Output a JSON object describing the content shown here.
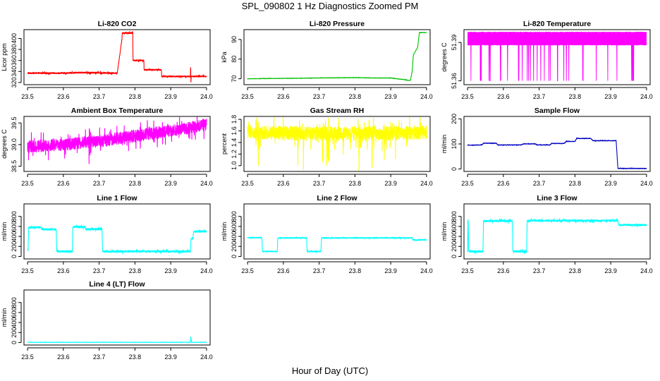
{
  "figure": {
    "title": "SPL_090802  1 Hz Diagnostics Zoomed PM",
    "xlabel": "Hour of Day (UTC)"
  },
  "chart_data": [
    {
      "type": "line",
      "title": "Li-820 CO2",
      "ylabel": "Licor ppm",
      "color": "#ff0000",
      "xlim": [
        23.49,
        24.01
      ],
      "ylim": [
        316,
        416
      ],
      "xticks": [
        23.5,
        23.6,
        23.7,
        23.8,
        23.9,
        24.0
      ],
      "yticks": [
        320,
        340,
        360,
        380,
        400
      ],
      "noise": 1.2,
      "x": [
        23.5,
        23.6,
        23.649,
        23.65,
        23.75,
        23.7505,
        23.764,
        23.7645,
        23.794,
        23.7945,
        23.825,
        23.8255,
        23.874,
        23.8745,
        23.955,
        23.9555,
        23.9565,
        23.957,
        24.0
      ],
      "y": [
        337,
        337,
        338,
        338,
        337,
        337,
        400,
        410,
        410,
        360,
        360,
        343,
        343,
        331,
        331,
        351,
        319,
        331,
        331
      ]
    },
    {
      "type": "line",
      "title": "Li-820 Pressure",
      "ylabel": "kPa",
      "color": "#00c000",
      "xlim": [
        23.49,
        24.01
      ],
      "ylim": [
        67,
        95
      ],
      "xticks": [
        23.5,
        23.6,
        23.7,
        23.8,
        23.9,
        24.0
      ],
      "yticks": [
        70,
        80,
        90
      ],
      "noise": 0.1,
      "x": [
        23.5,
        23.6,
        23.799,
        23.8,
        23.85,
        23.85,
        23.9,
        23.945,
        23.946,
        23.95,
        23.955,
        23.96,
        23.963,
        23.975,
        23.98,
        24.0
      ],
      "y": [
        70,
        70.2,
        70.6,
        70.6,
        70.4,
        70.4,
        70.4,
        69.4,
        69.2,
        69.2,
        69.2,
        74,
        82,
        86,
        93.5,
        93.5
      ]
    },
    {
      "type": "line",
      "title": "Li-820 Temperature",
      "ylabel": "degrees C",
      "color": "#ff00ff",
      "xlim": [
        23.49,
        24.01
      ],
      "ylim": [
        51.357,
        51.4
      ],
      "xticks": [
        23.5,
        23.6,
        23.7,
        23.8,
        23.9,
        24.0
      ],
      "yticks": [
        51.36,
        51.39
      ],
      "render": "digital",
      "levels": [
        51.36,
        51.398
      ],
      "baseline": 51.388
    },
    {
      "type": "line",
      "title": "Ambient Box Temperature",
      "ylabel": "degrees C",
      "color": "#ff00ff",
      "xlim": [
        23.49,
        24.01
      ],
      "ylim": [
        38.38,
        39.65
      ],
      "xticks": [
        23.5,
        23.6,
        23.7,
        23.8,
        23.9,
        24.0
      ],
      "yticks": [
        38.5,
        39.0,
        39.5
      ],
      "noise": 0.14,
      "x": [
        23.5,
        23.6,
        23.7,
        23.8,
        23.9,
        24.0
      ],
      "y": [
        38.95,
        39.0,
        39.08,
        39.2,
        39.32,
        39.45
      ]
    },
    {
      "type": "line",
      "title": "Gas Stream RH",
      "ylabel": "percent",
      "color": "#ffff00",
      "xlim": [
        23.49,
        24.01
      ],
      "ylim": [
        0.9,
        1.85
      ],
      "xticks": [
        23.5,
        23.6,
        23.7,
        23.8,
        23.9,
        24.0
      ],
      "yticks": [
        1.0,
        1.2,
        1.4,
        1.6,
        1.8
      ],
      "noise": 0.12,
      "x": [
        23.5,
        23.7,
        23.9,
        24.0
      ],
      "y": [
        1.58,
        1.55,
        1.56,
        1.58
      ]
    },
    {
      "type": "line",
      "title": "Sample Flow",
      "ylabel": "ml/min",
      "color": "#0000c0",
      "xlim": [
        23.49,
        24.01
      ],
      "ylim": [
        -10,
        210
      ],
      "xticks": [
        23.5,
        23.6,
        23.7,
        23.8,
        23.9,
        24.0
      ],
      "yticks": [
        0,
        100,
        200
      ],
      "noise": 1.2,
      "x": [
        23.5,
        23.54,
        23.545,
        23.58,
        23.585,
        23.65,
        23.655,
        23.69,
        23.695,
        23.73,
        23.735,
        23.77,
        23.775,
        23.8,
        23.805,
        23.845,
        23.85,
        23.915,
        23.92,
        24.0
      ],
      "y": [
        95,
        96,
        103,
        103,
        96,
        96,
        100,
        100,
        96,
        96,
        102,
        102,
        110,
        110,
        122,
        122,
        113,
        113,
        2,
        2
      ]
    },
    {
      "type": "line",
      "title": "Line 1 Flow",
      "ylabel": "ml/min",
      "color": "#00ffff",
      "xlim": [
        23.49,
        24.01
      ],
      "ylim": [
        -50,
        1050
      ],
      "xticks": [
        23.5,
        23.6,
        23.7,
        23.8,
        23.9,
        24.0
      ],
      "yticks": [
        0,
        200,
        400,
        600,
        800
      ],
      "noise": 18,
      "x": [
        23.5,
        23.5015,
        23.503,
        23.538,
        23.54,
        23.58,
        23.5815,
        23.625,
        23.6265,
        23.66,
        23.662,
        23.708,
        23.7095,
        23.955,
        23.9565,
        23.962,
        23.964,
        24.0
      ],
      "y": [
        130,
        130,
        580,
        580,
        540,
        540,
        100,
        100,
        590,
        590,
        545,
        545,
        100,
        100,
        360,
        360,
        500,
        500
      ]
    },
    {
      "type": "line",
      "title": "Line 2 Flow",
      "ylabel": "ml/min",
      "color": "#00ffff",
      "xlim": [
        23.49,
        24.01
      ],
      "ylim": [
        -50,
        1050
      ],
      "xticks": [
        23.5,
        23.6,
        23.7,
        23.8,
        23.9,
        24.0
      ],
      "yticks": [
        0,
        200,
        400,
        600,
        800
      ],
      "noise": 10,
      "x": [
        23.5,
        23.54,
        23.5415,
        23.583,
        23.5845,
        23.665,
        23.6665,
        23.705,
        23.7065,
        23.96,
        23.962,
        24.0
      ],
      "y": [
        375,
        375,
        100,
        100,
        370,
        370,
        100,
        100,
        370,
        370,
        330,
        330
      ]
    },
    {
      "type": "line",
      "title": "Line 3 Flow",
      "ylabel": "ml/min",
      "color": "#00ffff",
      "xlim": [
        23.49,
        24.01
      ],
      "ylim": [
        -50,
        1050
      ],
      "xticks": [
        23.5,
        23.6,
        23.7,
        23.8,
        23.9,
        24.0
      ],
      "yticks": [
        0,
        200,
        400,
        600,
        800
      ],
      "noise": 18,
      "x": [
        23.5,
        23.501,
        23.502,
        23.503,
        23.543,
        23.5445,
        23.625,
        23.6265,
        23.665,
        23.6665,
        23.92,
        23.922,
        24.0
      ],
      "y": [
        100,
        720,
        720,
        100,
        100,
        710,
        710,
        100,
        100,
        715,
        715,
        630,
        630
      ]
    },
    {
      "type": "line",
      "title": "Line 4 (LT) Flow",
      "ylabel": "ml/min",
      "color": "#00ffff",
      "xlim": [
        23.49,
        24.01
      ],
      "ylim": [
        -50,
        1050
      ],
      "xticks": [
        23.5,
        23.6,
        23.7,
        23.8,
        23.9,
        24.0
      ],
      "yticks": [
        0,
        200,
        400,
        600,
        800
      ],
      "noise": 3,
      "x": [
        23.5,
        23.955,
        23.956,
        23.958,
        23.96,
        24.0
      ],
      "y": [
        5,
        5,
        120,
        5,
        5,
        5
      ]
    }
  ]
}
